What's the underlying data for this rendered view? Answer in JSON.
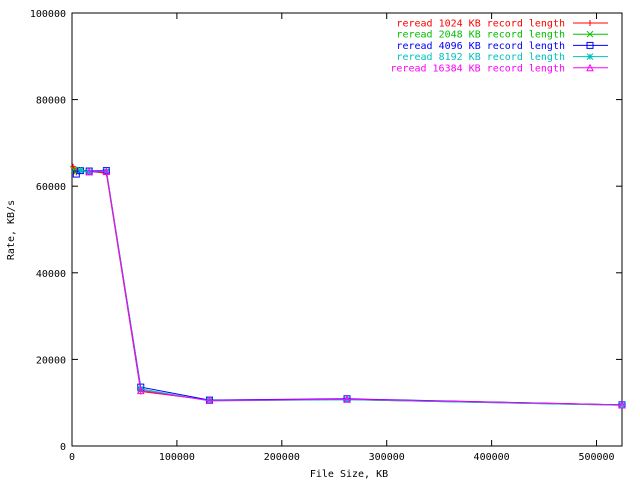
{
  "chart_data": {
    "type": "line",
    "xlabel": "File Size, KB",
    "ylabel": "Rate, KB/s",
    "xlim": [
      0,
      524288
    ],
    "ylim": [
      0,
      100000
    ],
    "x_ticks": [
      0,
      100000,
      200000,
      300000,
      400000,
      500000
    ],
    "x_tick_labels": [
      "0",
      "100000",
      "200000",
      "300000",
      "400000",
      "500000"
    ],
    "y_ticks": [
      0,
      20000,
      40000,
      60000,
      80000,
      100000
    ],
    "y_tick_labels": [
      "0",
      "20000",
      "40000",
      "60000",
      "80000",
      "100000"
    ],
    "grid": false,
    "legend_position": "top-right",
    "x": [
      1024,
      2048,
      4096,
      8192,
      16384,
      32768,
      65536,
      131072,
      262144,
      524288
    ],
    "series": [
      {
        "name": "reread 1024 KB record length",
        "color": "#ff0000",
        "marker": "plus",
        "values": [
          64500,
          64000,
          63200,
          63500,
          63400,
          63000,
          12600,
          10600,
          10800,
          9500
        ]
      },
      {
        "name": "reread 2048 KB record length",
        "color": "#00c000",
        "marker": "cross",
        "values": [
          null,
          63800,
          63400,
          63600,
          63300,
          63300,
          12900,
          10500,
          10700,
          9400
        ]
      },
      {
        "name": "reread 4096 KB record length",
        "color": "#0000ff",
        "marker": "square",
        "values": [
          null,
          null,
          62800,
          63600,
          63500,
          63600,
          13600,
          10600,
          10900,
          9500
        ]
      },
      {
        "name": "reread 8192 KB record length",
        "color": "#00c0c0",
        "marker": "star",
        "values": [
          null,
          null,
          null,
          63700,
          63200,
          63500,
          13200,
          10400,
          10700,
          9400
        ]
      },
      {
        "name": "reread 16384 KB record length",
        "color": "#ff00ff",
        "marker": "triangle",
        "values": [
          null,
          null,
          null,
          null,
          63300,
          63400,
          12800,
          10500,
          10800,
          9500
        ]
      }
    ]
  }
}
